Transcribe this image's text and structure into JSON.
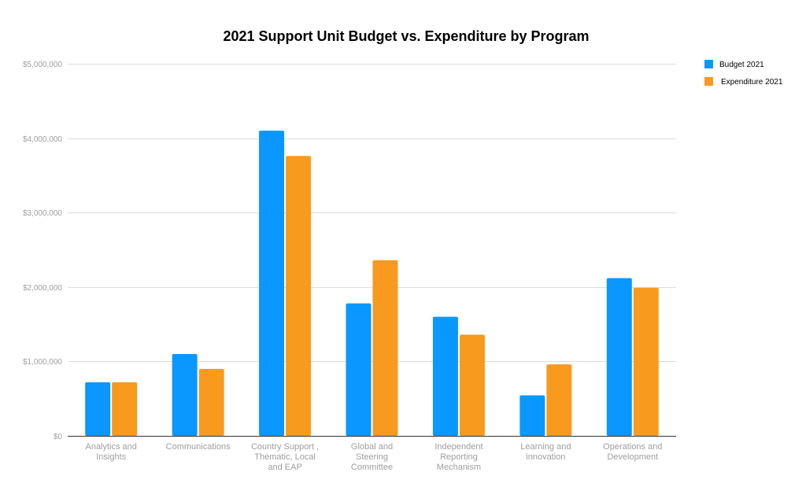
{
  "chart_data": {
    "type": "bar",
    "title": "2021 Support Unit Budget vs. Expenditure by Program",
    "xlabel": "",
    "ylabel": "",
    "ylim": [
      0,
      5000000
    ],
    "yticks": [
      0,
      1000000,
      2000000,
      3000000,
      4000000,
      5000000
    ],
    "ytick_labels": [
      "$0",
      "$1,000,000",
      "$2,000,000",
      "$3,000,000",
      "$4,000,000",
      "$5,000,000"
    ],
    "grid": true,
    "legend_position": "top-right",
    "categories": [
      [
        "Analytics and",
        "Insights"
      ],
      [
        "Communications"
      ],
      [
        "Country Support ,",
        "Thematic, Local",
        "and EAP"
      ],
      [
        "Global and",
        "Steering",
        "Committee"
      ],
      [
        "Independent",
        "Reporting",
        "Mechanism"
      ],
      [
        "Learning and",
        "innovation"
      ],
      [
        "Operations and",
        "Development"
      ]
    ],
    "series": [
      {
        "name": "Budget 2021",
        "color": "#0a97ff",
        "values": [
          720000,
          1100000,
          4100000,
          1780000,
          1600000,
          545000,
          2120000
        ]
      },
      {
        "name": "Expenditure 2021",
        "color": "#f79a1e",
        "values": [
          720000,
          900000,
          3760000,
          2360000,
          1360000,
          960000,
          1990000
        ]
      }
    ]
  }
}
